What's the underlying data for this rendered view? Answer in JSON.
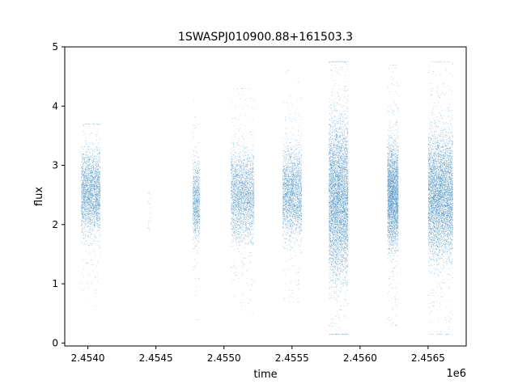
{
  "chart_data": {
    "type": "scatter",
    "title": "1SWASPJ010900.88+161503.3",
    "xlabel": "time",
    "ylabel": "flux",
    "x_offset_label": "1e6",
    "xlim": [
      2.45383,
      2.45678
    ],
    "ylim": [
      -0.05,
      5.0
    ],
    "x_ticks": [
      2.454,
      2.4545,
      2.455,
      2.4555,
      2.456,
      2.4565
    ],
    "x_tick_labels": [
      "2.4540",
      "2.4545",
      "2.4550",
      "2.4555",
      "2.4560",
      "2.4565"
    ],
    "y_ticks": [
      0,
      1,
      2,
      3,
      4,
      5
    ],
    "y_tick_labels": [
      "0",
      "1",
      "2",
      "3",
      "4",
      "5"
    ],
    "grid": false,
    "marker_color": "#1f77b4",
    "series": [
      {
        "clusters": [
          {
            "x_start": 2.45395,
            "x_end": 2.45409,
            "y_center": 2.55,
            "y_core": [
              2.0,
              3.2
            ],
            "y_extent": [
              0.3,
              3.7
            ],
            "points": 2600
          },
          {
            "x_start": 2.45444,
            "x_end": 2.45446,
            "y_center": 2.2,
            "y_core": [
              1.9,
              2.5
            ],
            "y_extent": [
              1.9,
              3.4
            ],
            "points": 20
          },
          {
            "x_start": 2.45477,
            "x_end": 2.45482,
            "y_center": 2.4,
            "y_core": [
              1.8,
              2.9
            ],
            "y_extent": [
              0.4,
              4.3
            ],
            "points": 900
          },
          {
            "x_start": 2.45505,
            "x_end": 2.45522,
            "y_center": 2.5,
            "y_core": [
              1.8,
              3.1
            ],
            "y_extent": [
              0.5,
              4.3
            ],
            "points": 2600
          },
          {
            "x_start": 2.45543,
            "x_end": 2.45557,
            "y_center": 2.55,
            "y_core": [
              1.9,
              3.2
            ],
            "y_extent": [
              0.7,
              4.6
            ],
            "points": 2400
          },
          {
            "x_start": 2.45577,
            "x_end": 2.45591,
            "y_center": 2.45,
            "y_core": [
              1.3,
              3.6
            ],
            "y_extent": [
              0.15,
              4.75
            ],
            "points": 6500
          },
          {
            "x_start": 2.4562,
            "x_end": 2.45628,
            "y_center": 2.5,
            "y_core": [
              1.8,
              3.3
            ],
            "y_extent": [
              0.3,
              4.7
            ],
            "points": 3200
          },
          {
            "x_start": 2.4565,
            "x_end": 2.45668,
            "y_center": 2.5,
            "y_core": [
              1.6,
              3.4
            ],
            "y_extent": [
              0.15,
              4.75
            ],
            "points": 6000
          }
        ]
      }
    ]
  }
}
